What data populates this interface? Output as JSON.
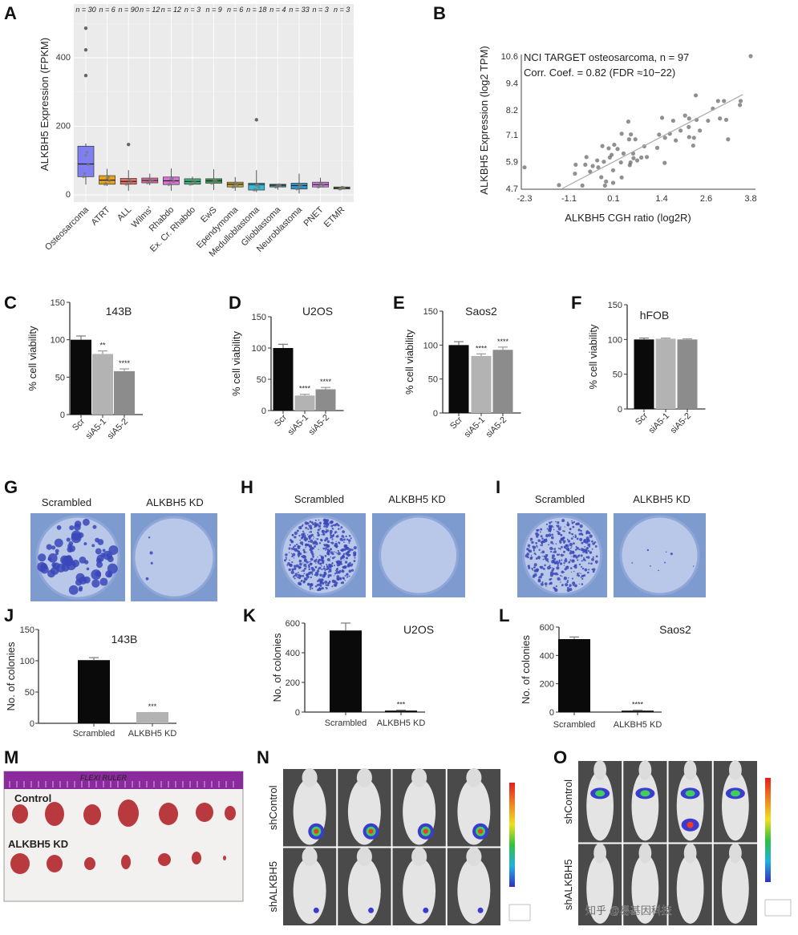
{
  "panel_labels": [
    "A",
    "B",
    "C",
    "D",
    "E",
    "F",
    "G",
    "H",
    "I",
    "J",
    "K",
    "L",
    "M",
    "N",
    "O"
  ],
  "chart_data": [
    {
      "id": "A",
      "type": "box",
      "ylabel": "ALKBH5 Expression (FPKM)",
      "ylim": [
        0,
        500
      ],
      "yticks": [
        0,
        200,
        400
      ],
      "grid": true,
      "background": "#ebebeb",
      "categories": [
        "Osteosarcoma",
        "ATRT",
        "ALL",
        "Wilms'",
        "Rhabdo",
        "Ex. Cr. Rhabdo",
        "EwS",
        "Ependymoma",
        "Medulloblastoma",
        "Glioblastoma",
        "Neuroblastoma",
        "PNET",
        "ETMR"
      ],
      "n_labels": [
        "n = 30",
        "n = 6",
        "n = 90",
        "n = 12",
        "n = 12",
        "n = 3",
        "n = 9",
        "n = 6",
        "n = 18",
        "n = 4",
        "n = 33",
        "n = 3",
        "n = 3"
      ],
      "q1": [
        53,
        31,
        31,
        35,
        30,
        31,
        34,
        23,
        14,
        23,
        17,
        23,
        17
      ],
      "median": [
        90,
        43,
        39,
        42,
        41,
        39,
        41,
        31,
        30,
        28,
        27,
        30,
        20
      ],
      "q3": [
        142,
        56,
        48,
        49,
        52,
        47,
        47,
        37,
        34,
        31,
        34,
        37,
        23
      ],
      "whisker_low": [
        30,
        26,
        12,
        28,
        12,
        28,
        14,
        12,
        8,
        15,
        4,
        22,
        15
      ],
      "whisker_high": [
        150,
        76,
        72,
        62,
        77,
        53,
        75,
        52,
        72,
        32,
        62,
        50,
        26
      ],
      "outliers": [
        [
          348,
          423,
          486
        ],
        [],
        [
          147
        ],
        [],
        [],
        [],
        [],
        [],
        [
          219
        ],
        [],
        [],
        [],
        []
      ],
      "colors": [
        "#7f7ff2",
        "#e8a31c",
        "#e96b62",
        "#e46b9c",
        "#df6fdc",
        "#3bb878",
        "#2fa24a",
        "#c7a626",
        "#35b9d6",
        "#2d9d8a",
        "#2b98d6",
        "#d37ee6",
        "#8f9a2e"
      ]
    },
    {
      "id": "B",
      "type": "scatter",
      "annotation_lines": [
        "NCI TARGET osteosarcoma, n = 97",
        "Corr. Coef. = 0.82 (FDR ≈10−22)"
      ],
      "xlabel": "ALKBH5 CGH ratio (log2R)",
      "ylabel": "ALKBH5 Expression (log2 TPM)",
      "xticks": [
        -2.3,
        -1.1,
        0.1,
        1.4,
        2.6,
        3.8
      ],
      "yticks": [
        4.7,
        5.9,
        7.1,
        8.2,
        9.4,
        10.6
      ],
      "xlim": [
        -2.3,
        3.8
      ],
      "ylim": [
        4.7,
        10.6
      ],
      "trend_line": [
        [
          -1.28,
          4.7
        ],
        [
          3.59,
          8.89
        ]
      ],
      "points": [
        [
          -2.3,
          5.64
        ],
        [
          3.8,
          10.6
        ],
        [
          -1.37,
          4.85
        ],
        [
          -0.92,
          5.76
        ],
        [
          -0.94,
          5.36
        ],
        [
          -0.74,
          4.83
        ],
        [
          -0.63,
          6.1
        ],
        [
          -0.66,
          5.76
        ],
        [
          -0.53,
          5.45
        ],
        [
          -0.46,
          5.7
        ],
        [
          -0.34,
          5.95
        ],
        [
          -0.31,
          5.64
        ],
        [
          -0.23,
          5.2
        ],
        [
          -0.2,
          6.59
        ],
        [
          -0.16,
          5.89
        ],
        [
          -0.13,
          4.83
        ],
        [
          -0.1,
          5.01
        ],
        [
          -0.03,
          6.49
        ],
        [
          0.0,
          6.08
        ],
        [
          0.05,
          6.2
        ],
        [
          0.09,
          5.51
        ],
        [
          0.09,
          4.95
        ],
        [
          0.12,
          6.65
        ],
        [
          0.21,
          6.46
        ],
        [
          0.3,
          5.86
        ],
        [
          0.32,
          5.19
        ],
        [
          0.32,
          7.14
        ],
        [
          0.37,
          6.26
        ],
        [
          0.5,
          7.68
        ],
        [
          0.52,
          6.89
        ],
        [
          0.54,
          5.74
        ],
        [
          0.56,
          5.86
        ],
        [
          0.57,
          7.11
        ],
        [
          0.63,
          6.26
        ],
        [
          0.64,
          6.05
        ],
        [
          0.69,
          6.89
        ],
        [
          0.74,
          5.95
        ],
        [
          0.85,
          6.08
        ],
        [
          0.93,
          6.58
        ],
        [
          1.0,
          6.1
        ],
        [
          1.28,
          6.51
        ],
        [
          1.33,
          7.1
        ],
        [
          1.41,
          7.85
        ],
        [
          1.48,
          5.84
        ],
        [
          1.49,
          6.96
        ],
        [
          1.62,
          7.14
        ],
        [
          1.71,
          7.72
        ],
        [
          1.78,
          6.84
        ],
        [
          1.91,
          7.28
        ],
        [
          2.03,
          7.95
        ],
        [
          2.13,
          7.44
        ],
        [
          2.14,
          6.99
        ],
        [
          2.14,
          7.82
        ],
        [
          2.25,
          6.61
        ],
        [
          2.27,
          6.96
        ],
        [
          2.32,
          8.85
        ],
        [
          2.34,
          7.76
        ],
        [
          2.43,
          7.28
        ],
        [
          2.65,
          7.72
        ],
        [
          2.78,
          8.26
        ],
        [
          2.92,
          8.6
        ],
        [
          2.97,
          7.82
        ],
        [
          3.08,
          8.6
        ],
        [
          3.14,
          7.76
        ],
        [
          3.19,
          6.89
        ],
        [
          3.53,
          8.6
        ],
        [
          3.51,
          8.42
        ]
      ]
    },
    {
      "id": "C",
      "type": "bar",
      "title": "143B",
      "ylabel": "% cell viability",
      "ylim": [
        0,
        150
      ],
      "yticks": [
        0,
        50,
        100,
        150
      ],
      "categories": [
        "Scr",
        "siA5-1",
        "siA5-2"
      ],
      "values": [
        100,
        81,
        58
      ],
      "errors": [
        5,
        4,
        3
      ],
      "significance": [
        "",
        "**",
        "****"
      ],
      "colors": [
        "#0a0a0a",
        "#b3b3b3",
        "#8c8c8c"
      ]
    },
    {
      "id": "D",
      "type": "bar",
      "title": "U2OS",
      "ylabel": "% cell viability",
      "ylim": [
        0,
        150
      ],
      "yticks": [
        0,
        50,
        100,
        150
      ],
      "categories": [
        "Scr",
        "siA5-1",
        "siA5-2"
      ],
      "values": [
        100,
        24,
        34
      ],
      "errors": [
        6,
        2,
        3
      ],
      "significance": [
        "",
        "****",
        "****"
      ],
      "colors": [
        "#0a0a0a",
        "#b3b3b3",
        "#8c8c8c"
      ]
    },
    {
      "id": "E",
      "type": "bar",
      "title": "Saos2",
      "ylabel": "% cell viability",
      "ylim": [
        0,
        150
      ],
      "yticks": [
        0,
        50,
        100,
        150
      ],
      "categories": [
        "Scr",
        "siA5-1",
        "siA5-2"
      ],
      "values": [
        100,
        84,
        93
      ],
      "errors": [
        5,
        3,
        4
      ],
      "significance": [
        "",
        "****",
        "****"
      ],
      "colors": [
        "#0a0a0a",
        "#b3b3b3",
        "#8c8c8c"
      ]
    },
    {
      "id": "F",
      "type": "bar",
      "title": "hFOB",
      "ylabel": "% cell viability",
      "ylim": [
        0,
        150
      ],
      "yticks": [
        0,
        50,
        100,
        150
      ],
      "categories": [
        "Scr",
        "siA5-1",
        "siA5-2"
      ],
      "values": [
        100,
        101,
        100
      ],
      "errors": [
        2,
        1,
        1
      ],
      "significance": [
        "",
        "",
        ""
      ],
      "colors": [
        "#0a0a0a",
        "#b3b3b3",
        "#8c8c8c"
      ]
    },
    {
      "id": "J",
      "type": "bar",
      "title": "143B",
      "ylabel": "No. of colonies",
      "ylim": [
        0,
        150
      ],
      "yticks": [
        0,
        50,
        100,
        150
      ],
      "categories": [
        "Scrambled",
        "ALKBH5 KD"
      ],
      "values": [
        101,
        18
      ],
      "errors": [
        4,
        0
      ],
      "significance": [
        "",
        "***"
      ],
      "colors": [
        "#0a0a0a",
        "#b3b3b3"
      ]
    },
    {
      "id": "K",
      "type": "bar",
      "title": "U2OS",
      "ylabel": "No. of colonies",
      "ylim": [
        0,
        600
      ],
      "yticks": [
        0,
        200,
        400,
        600
      ],
      "categories": [
        "Scrambled",
        "ALKBH5 KD"
      ],
      "values": [
        550,
        10
      ],
      "errors": [
        50,
        3
      ],
      "significance": [
        "",
        "***"
      ],
      "colors": [
        "#0a0a0a",
        "#0a0a0a"
      ]
    },
    {
      "id": "L",
      "type": "bar",
      "title": "Saos2",
      "ylabel": "No. of colonies",
      "ylim": [
        0,
        600
      ],
      "yticks": [
        0,
        200,
        400,
        600
      ],
      "categories": [
        "Scrambled",
        "ALKBH5 KD"
      ],
      "values": [
        515,
        10
      ],
      "errors": [
        15,
        3
      ],
      "significance": [
        "",
        "****"
      ],
      "colors": [
        "#0a0a0a",
        "#0a0a0a"
      ]
    }
  ],
  "colony_panels": [
    {
      "id": "G",
      "labels": [
        "Scrambled",
        "ALKBH5 KD"
      ]
    },
    {
      "id": "H",
      "labels": [
        "Scrambled",
        "ALKBH5 KD"
      ]
    },
    {
      "id": "I",
      "labels": [
        "Scrambled",
        "ALKBH5 KD"
      ]
    }
  ],
  "tumor_photo": {
    "row_labels": [
      "Control",
      "ALKBH5 KD"
    ],
    "ruler_text": "FLEXI RULER"
  },
  "imaging_panels": [
    {
      "id": "N",
      "row_labels": [
        "shControl",
        "shALKBH5"
      ]
    },
    {
      "id": "O",
      "row_labels": [
        "shControl",
        "shALKBH5"
      ]
    }
  ],
  "watermark": "知乎 @易基因科技"
}
